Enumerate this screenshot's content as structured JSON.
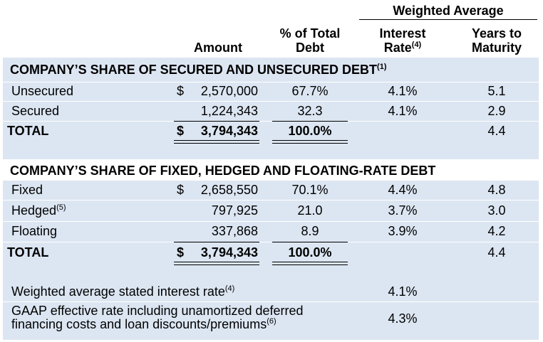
{
  "header": {
    "group_label": "Weighted Average",
    "col_amount": "Amount",
    "col_pct_line1": "% of Total",
    "col_pct_line2": "Debt",
    "col_rate_line1": "Interest",
    "col_rate_line2": "Rate",
    "col_rate_note": "(4)",
    "col_years_line1": "Years to",
    "col_years_line2": "Maturity"
  },
  "section1": {
    "title": "COMPANY’S SHARE OF SECURED AND UNSECURED DEBT",
    "note": "(1)",
    "rows": [
      {
        "label": "Unsecured",
        "dollar": "$",
        "amount": "2,570,000",
        "pct": "67.7%",
        "rate": "4.1%",
        "years": "5.1"
      },
      {
        "label": "Secured",
        "dollar": "",
        "amount": "1,224,343",
        "pct": "32.3",
        "rate": "4.1%",
        "years": "2.9"
      }
    ],
    "total": {
      "label": "TOTAL",
      "dollar": "$",
      "amount": "3,794,343",
      "pct": "100.0%",
      "rate": "",
      "years": "4.4"
    }
  },
  "section2": {
    "title": "COMPANY’S SHARE OF FIXED, HEDGED AND FLOATING-RATE DEBT",
    "rows": [
      {
        "label": "Fixed",
        "note": "",
        "dollar": "$",
        "amount": "2,658,550",
        "pct": "70.1%",
        "rate": "4.4%",
        "years": "4.8"
      },
      {
        "label": "Hedged",
        "note": "(5)",
        "dollar": "",
        "amount": "797,925",
        "pct": "21.0",
        "rate": "3.7%",
        "years": "3.0"
      },
      {
        "label": "Floating",
        "note": "",
        "dollar": "",
        "amount": "337,868",
        "pct": "8.9",
        "rate": "3.9%",
        "years": "4.2"
      }
    ],
    "total": {
      "label": "TOTAL",
      "dollar": "$",
      "amount": "3,794,343",
      "pct": "100.0%",
      "rate": "",
      "years": "4.4"
    }
  },
  "footer": {
    "stated_label": "Weighted average stated interest rate",
    "stated_note": "(4)",
    "stated_value": "4.1%",
    "gaap_line1": "GAAP effective rate including unamortized deferred",
    "gaap_line2": "financing costs and loan discounts/premiums",
    "gaap_note": "(6)",
    "gaap_value": "4.3%"
  }
}
